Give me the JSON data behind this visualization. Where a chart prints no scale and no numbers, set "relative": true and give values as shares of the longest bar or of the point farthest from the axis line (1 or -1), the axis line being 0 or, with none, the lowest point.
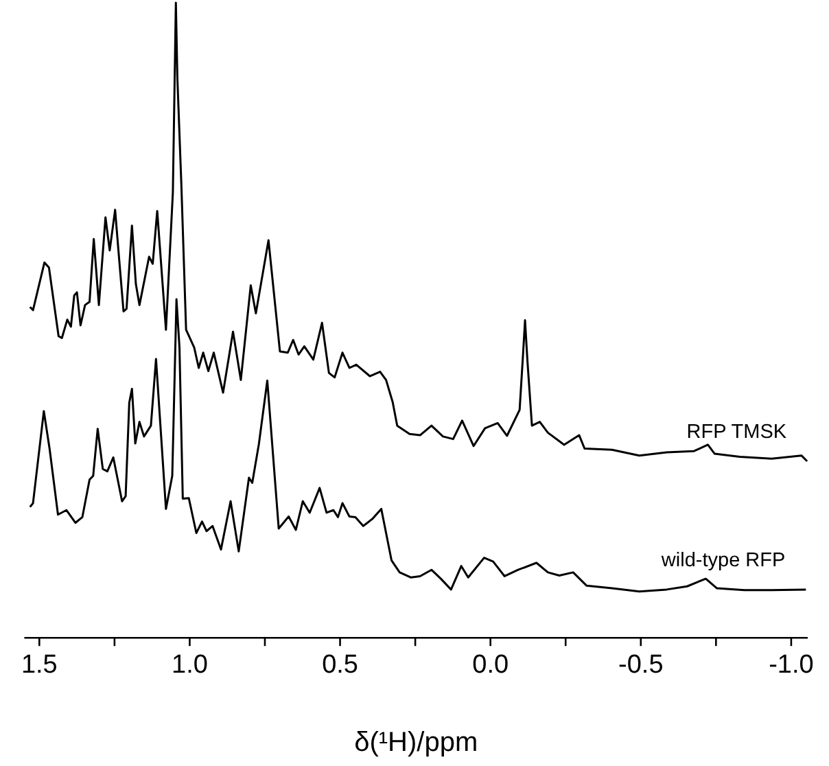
{
  "chart_data": {
    "type": "line",
    "relative": true,
    "xlabel": "δ(¹H)/ppm",
    "tick_labels": "x",
    "grid": false,
    "marker": "none",
    "line_style": "solid",
    "xlim": [
      1.55,
      -1.055
    ],
    "xticks": [
      1.5,
      {
        "value": 1.25,
        "label": null
      },
      {
        "value": 1.0,
        "label": "1.0"
      },
      {
        "value": 0.75,
        "label": null
      },
      0.5,
      {
        "value": 0.25,
        "label": null
      },
      {
        "value": 0.0,
        "label": "0.0"
      },
      {
        "value": -0.25,
        "label": null
      },
      -0.5,
      {
        "value": -0.75,
        "label": null
      },
      {
        "value": -1.0,
        "label": "-1.0"
      }
    ],
    "series": [
      {
        "name": "RFP TMSK",
        "color": "#000000",
        "x": [
          1.531,
          1.521,
          1.483,
          1.468,
          1.436,
          1.425,
          1.407,
          1.395,
          1.384,
          1.375,
          1.363,
          1.348,
          1.333,
          1.319,
          1.302,
          1.28,
          1.266,
          1.248,
          1.237,
          1.22,
          1.21,
          1.192,
          1.179,
          1.167,
          1.135,
          1.123,
          1.108,
          1.079,
          1.056,
          1.046,
          1.041,
          1.028,
          1.012,
          0.985,
          0.97,
          0.955,
          0.938,
          0.92,
          0.889,
          0.856,
          0.83,
          0.797,
          0.78,
          0.738,
          0.7,
          0.674,
          0.656,
          0.638,
          0.619,
          0.589,
          0.56,
          0.537,
          0.518,
          0.492,
          0.469,
          0.446,
          0.401,
          0.367,
          0.347,
          0.325,
          0.31,
          0.269,
          0.234,
          0.196,
          0.158,
          0.124,
          0.094,
          0.056,
          0.018,
          -0.024,
          -0.055,
          -0.097,
          -0.108,
          -0.115,
          -0.123,
          -0.138,
          -0.164,
          -0.191,
          -0.245,
          -0.295,
          -0.313,
          -0.404,
          -0.495,
          -0.586,
          -0.677,
          -0.723,
          -0.745,
          -0.829,
          -0.935,
          -1.034,
          -1.053
        ],
        "values": [
          0.521,
          0.516,
          0.591,
          0.583,
          0.475,
          0.472,
          0.501,
          0.49,
          0.539,
          0.544,
          0.492,
          0.524,
          0.529,
          0.628,
          0.524,
          0.662,
          0.61,
          0.674,
          0.61,
          0.514,
          0.518,
          0.649,
          0.557,
          0.524,
          0.6,
          0.589,
          0.672,
          0.485,
          0.701,
          1.0,
          0.881,
          0.717,
          0.485,
          0.457,
          0.425,
          0.449,
          0.42,
          0.449,
          0.386,
          0.482,
          0.406,
          0.555,
          0.511,
          0.626,
          0.451,
          0.449,
          0.469,
          0.446,
          0.459,
          0.438,
          0.496,
          0.417,
          0.41,
          0.449,
          0.425,
          0.43,
          0.412,
          0.419,
          0.406,
          0.371,
          0.334,
          0.321,
          0.319,
          0.334,
          0.317,
          0.313,
          0.342,
          0.302,
          0.33,
          0.338,
          0.318,
          0.359,
          0.443,
          0.5,
          0.436,
          0.334,
          0.34,
          0.323,
          0.304,
          0.319,
          0.298,
          0.296,
          0.287,
          0.292,
          0.294,
          0.304,
          0.29,
          0.285,
          0.282,
          0.287,
          0.278
        ]
      },
      {
        "name": "wild-type RFP",
        "color": "#000000",
        "x": [
          1.531,
          1.521,
          1.485,
          1.466,
          1.438,
          1.41,
          1.38,
          1.357,
          1.333,
          1.321,
          1.306,
          1.289,
          1.274,
          1.254,
          1.225,
          1.213,
          1.201,
          1.192,
          1.181,
          1.167,
          1.152,
          1.129,
          1.112,
          1.079,
          1.058,
          1.044,
          1.034,
          1.023,
          1.003,
          0.978,
          0.959,
          0.944,
          0.924,
          0.896,
          0.864,
          0.837,
          0.803,
          0.792,
          0.77,
          0.742,
          0.704,
          0.671,
          0.647,
          0.624,
          0.601,
          0.568,
          0.545,
          0.522,
          0.507,
          0.492,
          0.469,
          0.449,
          0.423,
          0.393,
          0.363,
          0.329,
          0.302,
          0.264,
          0.234,
          0.196,
          0.165,
          0.131,
          0.097,
          0.074,
          0.021,
          -0.009,
          -0.047,
          -0.092,
          -0.153,
          -0.191,
          -0.229,
          -0.275,
          -0.32,
          -0.404,
          -0.495,
          -0.586,
          -0.654,
          -0.716,
          -0.753,
          -0.844,
          -0.935,
          -1.049
        ],
        "values": [
          0.206,
          0.212,
          0.357,
          0.298,
          0.194,
          0.201,
          0.181,
          0.19,
          0.249,
          0.255,
          0.329,
          0.266,
          0.262,
          0.284,
          0.215,
          0.223,
          0.37,
          0.392,
          0.306,
          0.34,
          0.317,
          0.334,
          0.439,
          0.203,
          0.255,
          0.533,
          0.457,
          0.219,
          0.22,
          0.165,
          0.183,
          0.168,
          0.176,
          0.139,
          0.215,
          0.136,
          0.252,
          0.244,
          0.305,
          0.405,
          0.172,
          0.191,
          0.17,
          0.215,
          0.197,
          0.236,
          0.197,
          0.201,
          0.19,
          0.212,
          0.191,
          0.19,
          0.176,
          0.187,
          0.203,
          0.122,
          0.103,
          0.095,
          0.097,
          0.107,
          0.093,
          0.076,
          0.113,
          0.095,
          0.126,
          0.12,
          0.097,
          0.107,
          0.118,
          0.103,
          0.098,
          0.103,
          0.082,
          0.078,
          0.073,
          0.076,
          0.081,
          0.093,
          0.078,
          0.075,
          0.075,
          0.076
        ]
      }
    ]
  }
}
